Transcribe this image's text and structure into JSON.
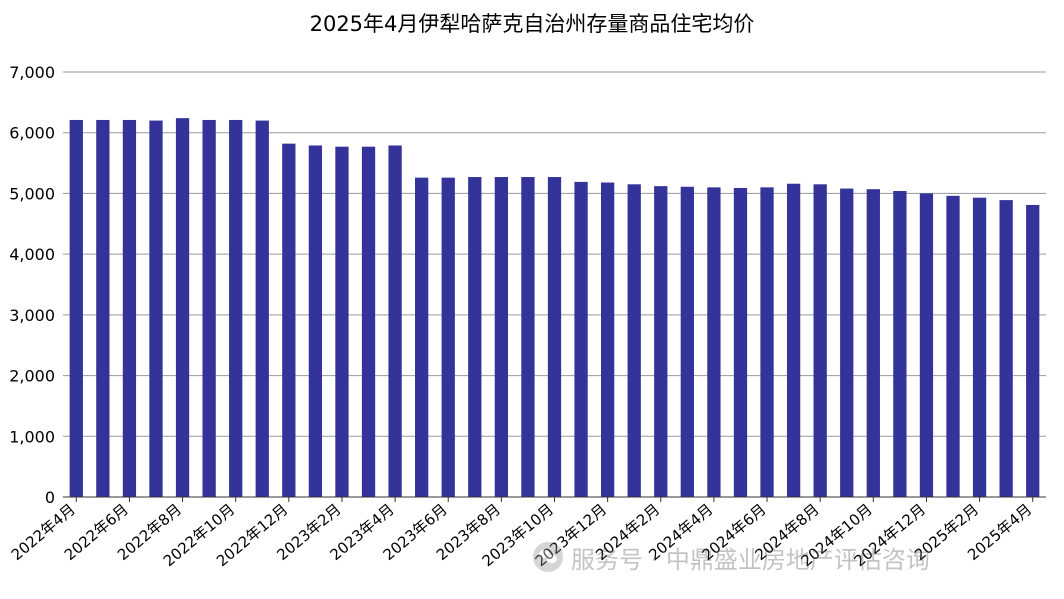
{
  "chart_data": {
    "type": "bar",
    "title": "2025年4月伊犁哈萨克自治州存量商品住宅均价",
    "xlabel": "",
    "ylabel": "",
    "ylim": [
      0,
      7000
    ],
    "yticks": [
      0,
      1000,
      2000,
      3000,
      4000,
      5000,
      6000,
      7000
    ],
    "ytick_labels": [
      "0",
      "1,000",
      "2,000",
      "3,000",
      "4,000",
      "5,000",
      "6,000",
      "7,000"
    ],
    "grid": "horizontal",
    "bar_color": "#33339a",
    "categories": [
      "2022年4月",
      "2022年5月",
      "2022年6月",
      "2022年7月",
      "2022年8月",
      "2022年9月",
      "2022年10月",
      "2022年11月",
      "2022年12月",
      "2023年1月",
      "2023年2月",
      "2023年3月",
      "2023年4月",
      "2023年5月",
      "2023年6月",
      "2023年7月",
      "2023年8月",
      "2023年9月",
      "2023年10月",
      "2023年11月",
      "2023年12月",
      "2024年1月",
      "2024年2月",
      "2024年3月",
      "2024年4月",
      "2024年5月",
      "2024年6月",
      "2024年7月",
      "2024年8月",
      "2024年9月",
      "2024年10月",
      "2024年11月",
      "2024年12月",
      "2025年1月",
      "2025年2月",
      "2025年3月",
      "2025年4月"
    ],
    "x_tick_labels": [
      "2022年4月",
      "2022年6月",
      "2022年8月",
      "2022年10月",
      "2022年12月",
      "2023年2月",
      "2023年4月",
      "2023年6月",
      "2023年8月",
      "2023年10月",
      "2023年12月",
      "2024年2月",
      "2024年4月",
      "2024年6月",
      "2024年8月",
      "2024年10月",
      "2024年12月",
      "2025年2月",
      "2025年4月"
    ],
    "values": [
      6210,
      6210,
      6210,
      6200,
      6240,
      6210,
      6210,
      6200,
      5820,
      5790,
      5770,
      5770,
      5790,
      5260,
      5260,
      5270,
      5270,
      5270,
      5270,
      5190,
      5180,
      5150,
      5120,
      5110,
      5100,
      5090,
      5100,
      5160,
      5150,
      5080,
      5070,
      5040,
      5000,
      4960,
      4930,
      4890,
      4810
    ]
  },
  "watermark": {
    "icon": "wechat-icon",
    "text": "服务号 · 中鼎盛业房地产评估咨询"
  }
}
